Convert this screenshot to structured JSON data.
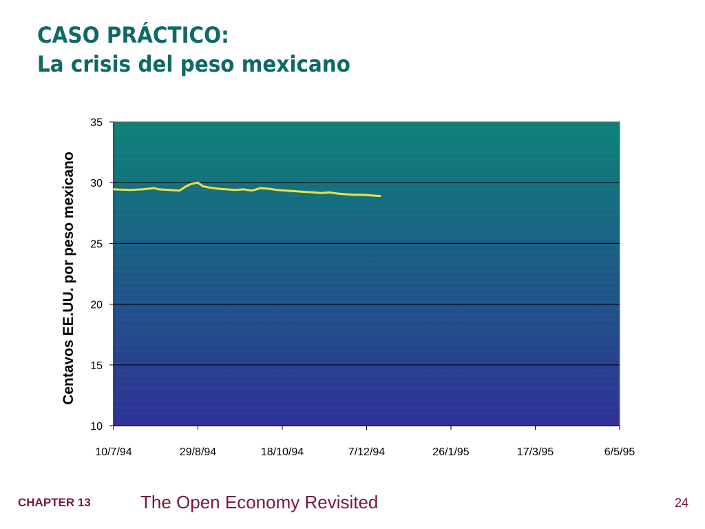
{
  "slide": {
    "title_line1": "CASO PRÁCTICO:",
    "title_line2": "La crisis del peso mexicano"
  },
  "footer": {
    "chapter": "CHAPTER 13",
    "book": "The Open Economy Revisited",
    "page": "24"
  },
  "colors": {
    "title": "#0f6a66",
    "footer": "#7a1545",
    "plot_top": "#0c8277",
    "plot_bottom": "#2e3197",
    "line": "#f0e040"
  },
  "chart_data": {
    "type": "line",
    "ylabel": "Centavos EE.UU. por peso mexicano",
    "xlabel": "",
    "ylim": [
      10,
      35
    ],
    "yticks": [
      10,
      15,
      20,
      25,
      30,
      35
    ],
    "xlim": [
      "1994-07-10",
      "1995-05-06"
    ],
    "xtick_labels": [
      "10/7/94",
      "29/8/94",
      "18/10/94",
      "7/12/94",
      "26/1/95",
      "17/3/95",
      "6/5/95"
    ],
    "grid": true,
    "series": [
      {
        "x": [
          "1994-07-10",
          "1994-07-20",
          "1994-07-27",
          "1994-08-03",
          "1994-08-06",
          "1994-08-12",
          "1994-08-18",
          "1994-08-22",
          "1994-08-25",
          "1994-08-29",
          "1994-09-01",
          "1994-09-05",
          "1994-09-10",
          "1994-09-15",
          "1994-09-20",
          "1994-09-25",
          "1994-09-30",
          "1994-10-05",
          "1994-10-10",
          "1994-10-15",
          "1994-10-20",
          "1994-10-25",
          "1994-10-30",
          "1994-11-05",
          "1994-11-10",
          "1994-11-15",
          "1994-11-20",
          "1994-11-25",
          "1994-11-30",
          "1994-12-05",
          "1994-12-10",
          "1994-12-15"
        ],
        "y": [
          29.45,
          29.4,
          29.45,
          29.55,
          29.45,
          29.4,
          29.35,
          29.7,
          29.9,
          30.0,
          29.7,
          29.6,
          29.5,
          29.45,
          29.4,
          29.45,
          29.35,
          29.55,
          29.5,
          29.4,
          29.35,
          29.3,
          29.25,
          29.2,
          29.15,
          29.2,
          29.1,
          29.05,
          29.0,
          29.0,
          28.95,
          28.9
        ]
      }
    ]
  }
}
